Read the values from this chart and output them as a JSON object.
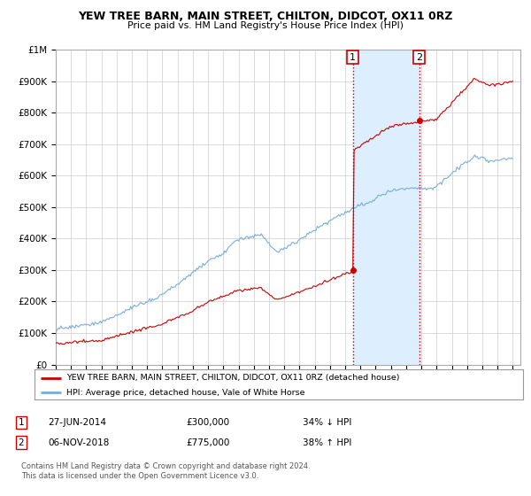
{
  "title": "YEW TREE BARN, MAIN STREET, CHILTON, DIDCOT, OX11 0RZ",
  "subtitle": "Price paid vs. HM Land Registry's House Price Index (HPI)",
  "legend_label_red": "YEW TREE BARN, MAIN STREET, CHILTON, DIDCOT, OX11 0RZ (detached house)",
  "legend_label_blue": "HPI: Average price, detached house, Vale of White Horse",
  "annotation1_date": "27-JUN-2014",
  "annotation1_price": "£300,000",
  "annotation1_hpi": "34% ↓ HPI",
  "annotation2_date": "06-NOV-2018",
  "annotation2_price": "£775,000",
  "annotation2_hpi": "38% ↑ HPI",
  "footer": "Contains HM Land Registry data © Crown copyright and database right 2024.\nThis data is licensed under the Open Government Licence v3.0.",
  "red_color": "#cc0000",
  "blue_color": "#7aaddb",
  "shade_color": "#ddeeff",
  "grid_color": "#cccccc",
  "background_color": "#ffffff",
  "ylim": [
    0,
    1000000
  ],
  "xmin": 1995.0,
  "xmax": 2025.5,
  "marker1_x": 2014.5,
  "marker1_y": 300000,
  "marker2_x": 2018.85,
  "marker2_y": 775000,
  "vline1_x": 2014.5,
  "vline2_x": 2018.85,
  "sale1_year": 2014.5,
  "sale2_year": 2018.85
}
